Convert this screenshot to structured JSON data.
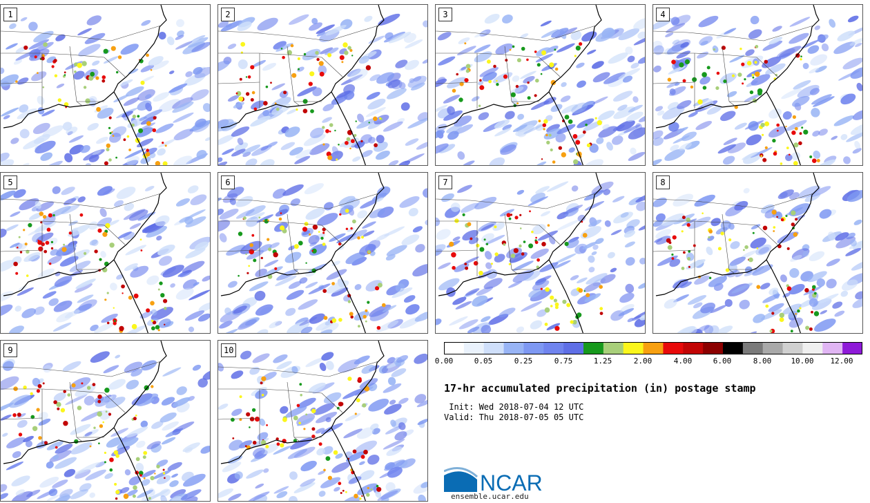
{
  "panels": [
    {
      "label": "1"
    },
    {
      "label": "2"
    },
    {
      "label": "3"
    },
    {
      "label": "4"
    },
    {
      "label": "5"
    },
    {
      "label": "6"
    },
    {
      "label": "7"
    },
    {
      "label": "8"
    },
    {
      "label": "9"
    },
    {
      "label": "10"
    }
  ],
  "colorbar": {
    "colors": [
      "#ffffff",
      "#eaf2fc",
      "#cfdffa",
      "#98b4f5",
      "#7e98f2",
      "#7084ee",
      "#5f6fe6",
      "#17991d",
      "#a8cf7a",
      "#fbf61c",
      "#f7a011",
      "#e80a0a",
      "#c20505",
      "#8b0000",
      "#000000",
      "#7a7a7a",
      "#a9a9a9",
      "#d0d0d0",
      "#f0f0f0",
      "#e0b5f3",
      "#8e1ad8"
    ],
    "tick_labels": [
      "0.00",
      "0.05",
      "0.25",
      "0.75",
      "1.25",
      "2.00",
      "4.00",
      "6.00",
      "8.00",
      "10.00",
      "12.00"
    ]
  },
  "title": "17-hr accumulated precipitation (in) postage stamp",
  "init_line": " Init: Wed 2018-07-04 12 UTC",
  "valid_line": "Valid: Thu 2018-07-05 05 UTC",
  "logo": {
    "text": "NCAR",
    "url": "ensemble.ucar.edu",
    "color": "#0a6cb4"
  }
}
